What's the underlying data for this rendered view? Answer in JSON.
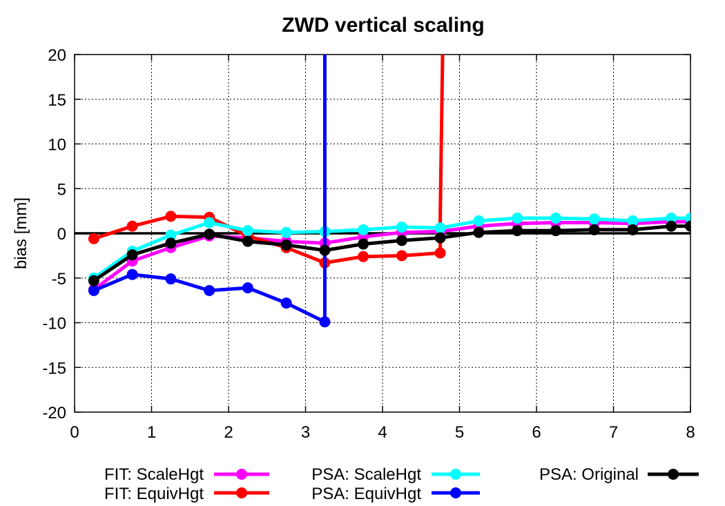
{
  "chart_data": {
    "type": "line",
    "title": "ZWD vertical scaling",
    "xlabel": "",
    "ylabel": "bias [mm]",
    "xlim": [
      0,
      8
    ],
    "ylim": [
      -20,
      20
    ],
    "xticks": [
      "0",
      "1",
      "2",
      "3",
      "4",
      "5",
      "6",
      "7",
      "8"
    ],
    "yticks": [
      "-20",
      "-15",
      "-10",
      "-5",
      "0",
      "5",
      "10",
      "15",
      "20"
    ],
    "grid": true,
    "legend_position": "bottom",
    "series": [
      {
        "name": "FIT: ScaleHgt",
        "color": "#ff00ff",
        "x": [
          0.25,
          0.75,
          1.25,
          1.75,
          2.25,
          2.75,
          3.25,
          3.75,
          4.25,
          4.75,
          5.25,
          5.75,
          6.25,
          6.75,
          7.25,
          7.75,
          8.0
        ],
        "y": [
          -6.3,
          -3.1,
          -1.6,
          -0.3,
          -0.5,
          -0.9,
          -1.1,
          -0.4,
          0.1,
          0.2,
          0.8,
          1.1,
          1.2,
          1.2,
          1.1,
          1.3,
          1.3
        ]
      },
      {
        "name": "FIT: EquivHgt",
        "color": "#ff0000",
        "x": [
          0.25,
          0.75,
          1.25,
          1.75,
          2.25,
          2.75,
          3.25,
          3.75,
          4.25,
          4.75,
          4.75,
          4.78
        ],
        "y": [
          -0.6,
          0.8,
          1.9,
          1.8,
          -0.3,
          -1.6,
          -3.3,
          -2.6,
          -2.5,
          -2.2,
          2.0,
          20.0
        ]
      },
      {
        "name": "PSA: ScaleHgt",
        "color": "#00ffff",
        "x": [
          0.25,
          0.75,
          1.25,
          1.75,
          2.25,
          2.75,
          3.25,
          3.75,
          4.25,
          4.75,
          5.25,
          5.75,
          6.25,
          6.75,
          7.25,
          7.75,
          8.0
        ],
        "y": [
          -5.0,
          -2.0,
          -0.2,
          1.2,
          0.3,
          0.1,
          0.2,
          0.4,
          0.7,
          0.6,
          1.4,
          1.7,
          1.7,
          1.6,
          1.4,
          1.7,
          1.7
        ]
      },
      {
        "name": "PSA: EquivHgt",
        "color": "#0000ff",
        "x": [
          0.25,
          0.75,
          1.25,
          1.75,
          2.25,
          2.75,
          3.25,
          3.25
        ],
        "y": [
          -6.4,
          -4.6,
          -5.1,
          -6.4,
          -6.1,
          -7.8,
          -9.9,
          20.0
        ]
      },
      {
        "name": "PSA: Original",
        "color": "#000000",
        "x": [
          0.25,
          0.75,
          1.25,
          1.75,
          2.25,
          2.75,
          3.25,
          3.75,
          4.25,
          4.75,
          5.25,
          5.75,
          6.25,
          6.75,
          7.25,
          7.75,
          8.0
        ],
        "y": [
          -5.3,
          -2.4,
          -1.1,
          -0.1,
          -0.9,
          -1.3,
          -1.9,
          -1.2,
          -0.8,
          -0.5,
          0.1,
          0.3,
          0.3,
          0.4,
          0.4,
          0.8,
          0.8
        ]
      }
    ],
    "zero_line": true
  }
}
